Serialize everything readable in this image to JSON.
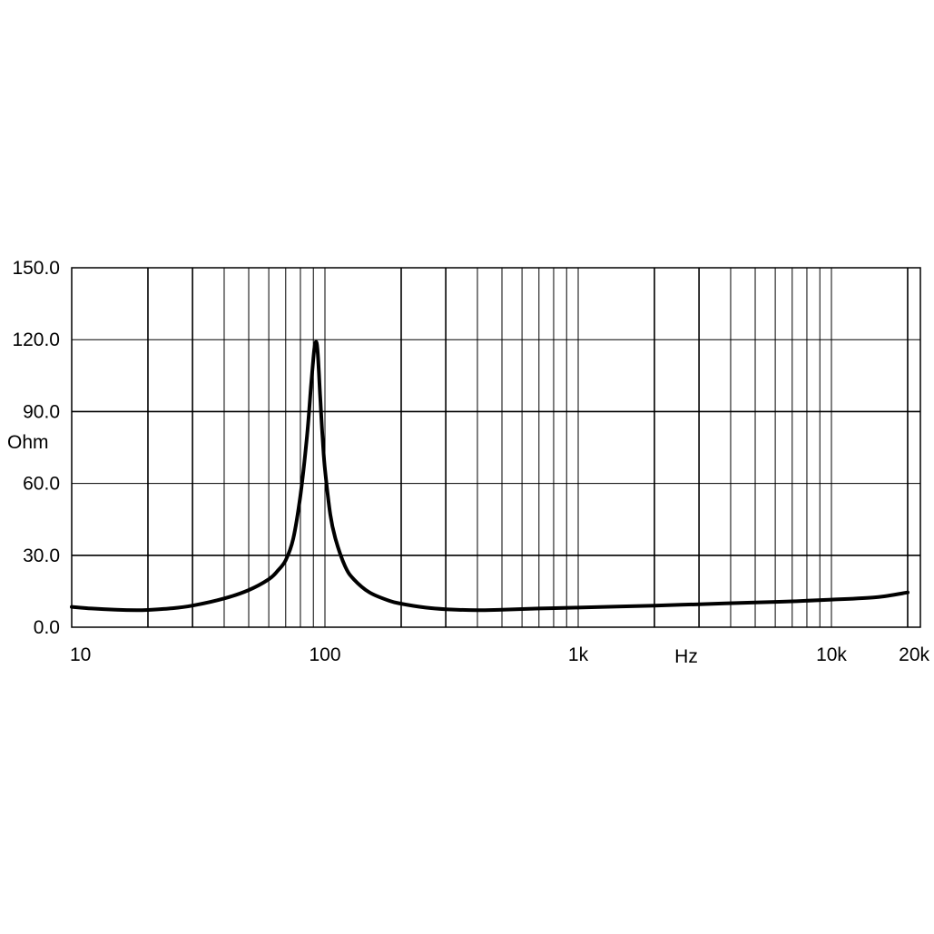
{
  "chart_data": {
    "type": "line",
    "title": "",
    "xlabel": "Hz",
    "ylabel": "Ohm",
    "x_scale": "log",
    "xlim": [
      10,
      20000
    ],
    "ylim": [
      0,
      150
    ],
    "grid": true,
    "y_ticks": [
      0,
      30,
      60,
      90,
      120,
      150
    ],
    "y_tick_labels": [
      "0.0",
      "30.0",
      "60.0",
      "90.0",
      "120.0",
      "150.0"
    ],
    "x_ticks": [
      10,
      100,
      1000,
      10000,
      20000
    ],
    "x_tick_labels": [
      "10",
      "100",
      "1k",
      "10k",
      "20k"
    ],
    "series": [
      {
        "x": [
          10,
          12,
          15,
          18,
          20,
          25,
          30,
          40,
          50,
          60,
          65,
          70,
          75,
          80,
          85,
          88,
          90,
          91,
          92,
          93,
          94,
          95,
          96,
          98,
          100,
          105,
          110,
          120,
          130,
          150,
          180,
          200,
          250,
          300,
          400,
          500,
          700,
          1000,
          2000,
          3000,
          5000,
          7000,
          10000,
          15000,
          20000
        ],
        "y": [
          8.5,
          7.8,
          7.3,
          7.1,
          7.2,
          7.9,
          9.0,
          12.0,
          15.5,
          20.0,
          23.5,
          28.0,
          37.0,
          55.0,
          80.0,
          100.0,
          112.0,
          117.0,
          119.0,
          118.0,
          112.0,
          103.0,
          94.0,
          78.0,
          66.0,
          47.0,
          37.0,
          25.5,
          20.0,
          14.5,
          11.0,
          9.8,
          8.2,
          7.5,
          7.1,
          7.3,
          7.8,
          8.2,
          9.0,
          9.6,
          10.3,
          10.8,
          11.5,
          12.5,
          14.5
        ]
      }
    ]
  }
}
